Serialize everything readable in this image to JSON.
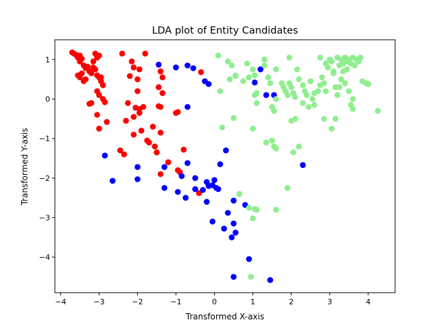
{
  "chart_data": {
    "type": "scatter",
    "title": "LDA plot of Entity Candidates",
    "xlabel": "Transformed X-axis",
    "ylabel": "Transformed Y-axis",
    "xlim": [
      -4.15,
      4.7
    ],
    "ylim": [
      -4.9,
      1.5
    ],
    "xticks": [
      -4,
      -3,
      -2,
      -1,
      0,
      1,
      2,
      3,
      4
    ],
    "yticks": [
      1,
      0,
      -1,
      -2,
      -3,
      -4
    ],
    "grid": false,
    "legend": "none",
    "series": [
      {
        "color": "#ff0000",
        "points": [
          [
            -3.7,
            1.18
          ],
          [
            -3.65,
            1.15
          ],
          [
            -3.6,
            1.12
          ],
          [
            -3.55,
            1.05
          ],
          [
            -3.5,
            1.1
          ],
          [
            -3.45,
            1.02
          ],
          [
            -3.5,
            0.95
          ],
          [
            -3.4,
            0.85
          ],
          [
            -3.35,
            0.78
          ],
          [
            -3.3,
            0.82
          ],
          [
            -3.25,
            0.7
          ],
          [
            -3.2,
            0.65
          ],
          [
            -3.15,
            0.8
          ],
          [
            -3.1,
            0.75
          ],
          [
            -3.05,
            0.6
          ],
          [
            -3.0,
            0.55
          ],
          [
            -2.95,
            0.45
          ],
          [
            -2.9,
            0.35
          ],
          [
            -3.1,
            1.15
          ],
          [
            -3.05,
            1.05
          ],
          [
            -3.0,
            1.1
          ],
          [
            -3.45,
            0.65
          ],
          [
            -3.5,
            0.55
          ],
          [
            -3.35,
            0.5
          ],
          [
            -3.55,
            0.6
          ],
          [
            -3.4,
            0.45
          ],
          [
            -3.25,
            -0.12
          ],
          [
            -3.2,
            -0.1
          ],
          [
            -3.05,
            0.2
          ],
          [
            -3.0,
            0.1
          ],
          [
            -2.9,
            0.0
          ],
          [
            -2.85,
            -0.08
          ],
          [
            -3.05,
            -0.4
          ],
          [
            -3.0,
            -0.75
          ],
          [
            -2.8,
            -0.58
          ],
          [
            -2.4,
            1.15
          ],
          [
            -2.15,
            0.95
          ],
          [
            -2.1,
            0.8
          ],
          [
            -1.95,
            0.75
          ],
          [
            -1.8,
            1.15
          ],
          [
            -1.4,
            0.7
          ],
          [
            -1.35,
            0.55
          ],
          [
            -2.2,
            0.58
          ],
          [
            -2.0,
            0.5
          ],
          [
            -2.25,
            -0.1
          ],
          [
            -2.05,
            -0.22
          ],
          [
            -1.95,
            -0.25
          ],
          [
            -1.85,
            -0.2
          ],
          [
            -2.1,
            -0.45
          ],
          [
            -1.95,
            -0.35
          ],
          [
            -2.3,
            -0.55
          ],
          [
            -2.1,
            -0.9
          ],
          [
            -1.9,
            -0.8
          ],
          [
            -1.6,
            -0.7
          ],
          [
            -1.4,
            -0.85
          ],
          [
            -1.75,
            -1.05
          ],
          [
            -1.7,
            -1.1
          ],
          [
            -1.45,
            -0.18
          ],
          [
            -1.4,
            -0.2
          ],
          [
            -1.35,
            0.15
          ],
          [
            -1.45,
            0.3
          ],
          [
            -1.0,
            -0.35
          ],
          [
            -0.95,
            -0.33
          ],
          [
            -2.45,
            -1.3
          ],
          [
            -2.35,
            -1.4
          ],
          [
            -1.5,
            -1.35
          ],
          [
            -1.4,
            -1.9
          ],
          [
            -1.2,
            -1.6
          ],
          [
            -0.95,
            -1.8
          ],
          [
            -0.9,
            -1.85
          ],
          [
            -0.8,
            -1.28
          ],
          [
            -0.35,
            0.68
          ],
          [
            -0.4,
            -2.38
          ],
          [
            -1.55,
            -1.2
          ],
          [
            -3.15,
            0.95
          ],
          [
            -2.95,
            0.55
          ],
          [
            -2.0,
            0.2
          ]
        ]
      },
      {
        "color": "#0000ff",
        "points": [
          [
            -1.45,
            0.87
          ],
          [
            -1.0,
            0.8
          ],
          [
            -0.7,
            0.85
          ],
          [
            -0.55,
            0.78
          ],
          [
            -0.25,
            0.45
          ],
          [
            -0.15,
            0.38
          ],
          [
            -0.7,
            -0.2
          ],
          [
            1.2,
            0.75
          ],
          [
            1.05,
            0.42
          ],
          [
            1.35,
            0.1
          ],
          [
            1.55,
            0.1
          ],
          [
            -2.85,
            -1.43
          ],
          [
            -2.65,
            -2.07
          ],
          [
            -2.0,
            -1.72
          ],
          [
            -2.0,
            -2.03
          ],
          [
            -1.3,
            -1.72
          ],
          [
            -0.7,
            -1.62
          ],
          [
            -0.85,
            -1.95
          ],
          [
            -0.95,
            -2.35
          ],
          [
            -0.75,
            -2.5
          ],
          [
            -0.5,
            -2.0
          ],
          [
            -0.5,
            -2.28
          ],
          [
            -0.3,
            -2.3
          ],
          [
            -0.2,
            -2.1
          ],
          [
            -0.15,
            -2.2
          ],
          [
            -0.2,
            -2.6
          ],
          [
            -0.05,
            -2.18
          ],
          [
            0.0,
            -2.05
          ],
          [
            0.05,
            -2.25
          ],
          [
            0.1,
            -2.28
          ],
          [
            0.15,
            -1.65
          ],
          [
            -0.05,
            -3.1
          ],
          [
            0.3,
            -1.3
          ],
          [
            0.35,
            -2.88
          ],
          [
            0.25,
            -3.28
          ],
          [
            0.45,
            -3.5
          ],
          [
            0.5,
            -3.15
          ],
          [
            0.55,
            -3.38
          ],
          [
            0.5,
            -2.57
          ],
          [
            0.8,
            -2.68
          ],
          [
            0.9,
            -4.05
          ],
          [
            0.5,
            -4.5
          ],
          [
            1.45,
            -4.58
          ],
          [
            2.3,
            -1.67
          ],
          [
            -1.3,
            -2.25
          ]
        ]
      },
      {
        "color": "#90ee90",
        "points": [
          [
            0.1,
            1.1
          ],
          [
            0.15,
            0.2
          ],
          [
            0.2,
            -0.72
          ],
          [
            0.35,
            0.95
          ],
          [
            0.4,
            0.5
          ],
          [
            0.45,
            0.85
          ],
          [
            0.55,
            0.6
          ],
          [
            0.5,
            -0.48
          ],
          [
            0.65,
            -2.4
          ],
          [
            0.75,
            0.45
          ],
          [
            0.85,
            0.9
          ],
          [
            0.9,
            0.55
          ],
          [
            1.0,
            0.75
          ],
          [
            1.05,
            0.6
          ],
          [
            1.1,
            0.15
          ],
          [
            1.05,
            0.1
          ],
          [
            1.1,
            -0.1
          ],
          [
            1.3,
            1.0
          ],
          [
            1.3,
            0.85
          ],
          [
            1.4,
            0.55
          ],
          [
            1.45,
            0.4
          ],
          [
            1.5,
            -0.2
          ],
          [
            1.55,
            -0.3
          ],
          [
            1.6,
            0.0
          ],
          [
            1.0,
            -0.75
          ],
          [
            1.35,
            -1.1
          ],
          [
            1.5,
            -1.05
          ],
          [
            1.55,
            -1.2
          ],
          [
            1.6,
            -1.25
          ],
          [
            1.75,
            0.4
          ],
          [
            1.8,
            0.3
          ],
          [
            1.85,
            0.2
          ],
          [
            1.9,
            0.1
          ],
          [
            1.95,
            0.4
          ],
          [
            2.0,
            0.3
          ],
          [
            2.05,
            0.15
          ],
          [
            2.1,
            0.05
          ],
          [
            2.0,
            -0.55
          ],
          [
            2.1,
            -0.5
          ],
          [
            2.05,
            -1.35
          ],
          [
            2.2,
            -1.2
          ],
          [
            2.15,
            0.75
          ],
          [
            2.2,
            0.5
          ],
          [
            2.3,
            0.35
          ],
          [
            2.35,
            0.2
          ],
          [
            2.4,
            0.1
          ],
          [
            2.3,
            -0.1
          ],
          [
            2.45,
            -0.2
          ],
          [
            2.55,
            0.0
          ],
          [
            2.6,
            0.15
          ],
          [
            2.7,
            0.2
          ],
          [
            2.75,
            0.35
          ],
          [
            2.8,
            0.55
          ],
          [
            2.85,
            0.4
          ],
          [
            2.6,
            -0.15
          ],
          [
            2.75,
            1.05
          ],
          [
            2.85,
            -0.5
          ],
          [
            2.9,
            0.2
          ],
          [
            2.95,
            0.8
          ],
          [
            3.0,
            1.0
          ],
          [
            3.05,
            0.95
          ],
          [
            3.1,
            0.7
          ],
          [
            3.15,
            0.3
          ],
          [
            3.05,
            -0.75
          ],
          [
            3.15,
            -0.5
          ],
          [
            3.2,
            1.05
          ],
          [
            3.25,
            0.85
          ],
          [
            3.3,
            1.0
          ],
          [
            3.35,
            0.9
          ],
          [
            3.4,
            1.05
          ],
          [
            3.45,
            0.95
          ],
          [
            3.5,
            1.0
          ],
          [
            3.55,
            0.9
          ],
          [
            3.6,
            1.05
          ],
          [
            3.65,
            0.85
          ],
          [
            3.7,
            1.0
          ],
          [
            3.75,
            0.95
          ],
          [
            3.8,
            1.05
          ],
          [
            3.6,
            0.0
          ],
          [
            3.5,
            0.2
          ],
          [
            3.4,
            0.4
          ],
          [
            3.3,
            0.5
          ],
          [
            3.2,
            0.1
          ],
          [
            3.85,
            0.45
          ],
          [
            3.95,
            0.4
          ],
          [
            4.0,
            0.38
          ],
          [
            4.25,
            -0.3
          ],
          [
            3.55,
            -0.15
          ],
          [
            3.6,
            -0.25
          ],
          [
            3.1,
            0.65
          ],
          [
            1.9,
            -2.25
          ],
          [
            1.6,
            -2.8
          ],
          [
            1.1,
            -2.8
          ],
          [
            1.05,
            -2.78
          ],
          [
            1.0,
            -3.02
          ],
          [
            0.9,
            -2.75
          ],
          [
            0.95,
            -4.5
          ],
          [
            1.95,
            1.05
          ],
          [
            1.6,
            0.75
          ],
          [
            3.35,
            0.7
          ],
          [
            3.45,
            0.75
          ],
          [
            2.9,
            0.9
          ],
          [
            0.55,
            0.58
          ],
          [
            1.35,
            -1.1
          ],
          [
            2.5,
            0.45
          ],
          [
            3.25,
            0.3
          ]
        ]
      }
    ]
  }
}
